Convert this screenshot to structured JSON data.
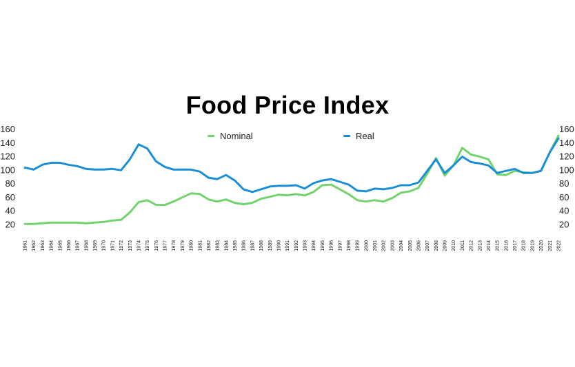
{
  "chart_data": {
    "type": "line",
    "title": "Food Price Index",
    "ylim": [
      0,
      160
    ],
    "yticks": [
      "20",
      "40",
      "60",
      "80",
      "100",
      "120",
      "140",
      "160"
    ],
    "grid": false,
    "legend_position": "top-center",
    "x": [
      "1961",
      "1962",
      "1963",
      "1964",
      "1965",
      "1966",
      "1967",
      "1968",
      "1969",
      "1970",
      "1971",
      "1972",
      "1973",
      "1974",
      "1975",
      "1976",
      "1977",
      "1978",
      "1979",
      "1980",
      "1981",
      "1982",
      "1983",
      "1984",
      "1985",
      "1986",
      "1987",
      "1988",
      "1989",
      "1990",
      "1991",
      "1992",
      "1993",
      "1994",
      "1995",
      "1996",
      "1997",
      "1998",
      "1999",
      "2000",
      "2001",
      "2002",
      "2003",
      "2004",
      "2005",
      "2006",
      "2007",
      "2008",
      "2009",
      "2010",
      "2011",
      "2012",
      "2013",
      "2014",
      "2015",
      "2016",
      "2017",
      "2018",
      "2019",
      "2020",
      "2021",
      "2022"
    ],
    "series": [
      {
        "name": "Nominal",
        "color": "#72d36d",
        "values": [
          20,
          20,
          21,
          22,
          22,
          22,
          22,
          21,
          22,
          23,
          25,
          26,
          37,
          52,
          55,
          48,
          48,
          53,
          59,
          65,
          64,
          56,
          53,
          56,
          51,
          49,
          51,
          57,
          60,
          63,
          62,
          64,
          62,
          67,
          77,
          78,
          71,
          64,
          55,
          53,
          55,
          53,
          58,
          66,
          68,
          73,
          94,
          117,
          91,
          106,
          132,
          122,
          119,
          115,
          93,
          92,
          98,
          96,
          95,
          98,
          125,
          150
        ]
      },
      {
        "name": "Real",
        "color": "#1b8fd6",
        "values": [
          103,
          100,
          107,
          110,
          110,
          107,
          105,
          101,
          100,
          100,
          101,
          99,
          115,
          137,
          131,
          112,
          104,
          100,
          100,
          100,
          97,
          88,
          86,
          92,
          84,
          71,
          67,
          71,
          75,
          76,
          76,
          77,
          72,
          80,
          84,
          86,
          82,
          78,
          69,
          68,
          72,
          71,
          73,
          77,
          77,
          81,
          98,
          115,
          95,
          106,
          119,
          111,
          109,
          106,
          95,
          98,
          101,
          95,
          95,
          98,
          125,
          146
        ]
      }
    ]
  }
}
